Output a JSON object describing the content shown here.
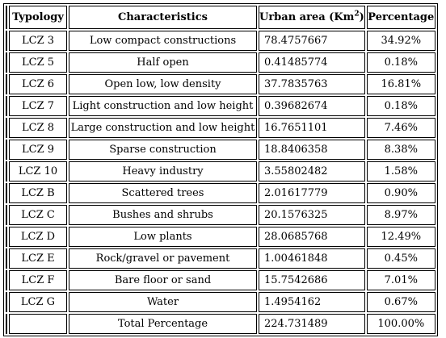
{
  "table": {
    "headers": {
      "typology": "Typology",
      "characteristics": "Characteristics",
      "urban_area": "Urban area (Km",
      "urban_area_sup": "2",
      "urban_area_close": ")",
      "percentage": "Percentage"
    },
    "rows": [
      {
        "typology": "LCZ 3",
        "characteristics": "Low compact constructions",
        "area": "78.4757667",
        "percentage": "34.92%"
      },
      {
        "typology": "LCZ 5",
        "characteristics": "Half open",
        "area": "0.41485774",
        "percentage": "0.18%"
      },
      {
        "typology": "LCZ 6",
        "characteristics": "Open low, low density",
        "area": "37.7835763",
        "percentage": "16.81%"
      },
      {
        "typology": "LCZ 7",
        "characteristics": "Light construction and low height",
        "area": "0.39682674",
        "percentage": "0.18%"
      },
      {
        "typology": "LCZ 8",
        "characteristics": "Large construction and low height",
        "area": "16.7651101",
        "percentage": "7.46%"
      },
      {
        "typology": "LCZ 9",
        "characteristics": "Sparse construction",
        "area": "18.8406358",
        "percentage": "8.38%"
      },
      {
        "typology": "LCZ 10",
        "characteristics": "Heavy industry",
        "area": "3.55802482",
        "percentage": "1.58%"
      },
      {
        "typology": "LCZ B",
        "characteristics": "Scattered trees",
        "area": "2.01617779",
        "percentage": "0.90%"
      },
      {
        "typology": "LCZ C",
        "characteristics": "Bushes and shrubs",
        "area": "20.1576325",
        "percentage": "8.97%"
      },
      {
        "typology": "LCZ D",
        "characteristics": "Low plants",
        "area": "28.0685768",
        "percentage": "12.49%"
      },
      {
        "typology": "LCZ E",
        "characteristics": "Rock/gravel or pavement",
        "area": "1.00461848",
        "percentage": "0.45%"
      },
      {
        "typology": "LCZ F",
        "characteristics": "Bare floor or sand",
        "area": "15.7542686",
        "percentage": "7.01%"
      },
      {
        "typology": "LCZ G",
        "characteristics": "Water",
        "area": "1.4954162",
        "percentage": "0.67%"
      }
    ],
    "total": {
      "typology": "",
      "characteristics": "Total Percentage",
      "area": "224.731489",
      "percentage": "100.00%"
    }
  }
}
